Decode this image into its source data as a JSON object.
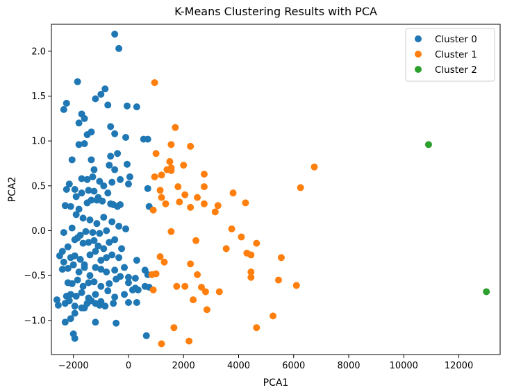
{
  "chart_data": {
    "type": "scatter",
    "title": "K-Means Clustering Results with PCA",
    "xlabel": "PCA1",
    "ylabel": "PCA2",
    "xlim": [
      -2800,
      13500
    ],
    "ylim": [
      -1.38,
      2.3
    ],
    "xticks": [
      -2000,
      0,
      2000,
      4000,
      6000,
      8000,
      10000,
      12000
    ],
    "xtick_labels": [
      "−2000",
      "0",
      "2000",
      "4000",
      "6000",
      "8000",
      "10000",
      "12000"
    ],
    "yticks": [
      -1.0,
      -0.5,
      0.0,
      0.5,
      1.0,
      1.5,
      2.0
    ],
    "ytick_labels": [
      "−1.0",
      "−0.5",
      "0.0",
      "0.5",
      "1.0",
      "1.5",
      "2.0"
    ],
    "grid": false,
    "legend_position": "top-right",
    "series": [
      {
        "name": "Cluster 0",
        "color": "#1f77b4",
        "points": [
          [
            -500,
            2.19
          ],
          [
            -350,
            2.03
          ],
          [
            -1850,
            1.66
          ],
          [
            -2250,
            1.42
          ],
          [
            -2350,
            1.35
          ],
          [
            -1700,
            1.3
          ],
          [
            -1200,
            1.47
          ],
          [
            -1000,
            1.52
          ],
          [
            -850,
            1.58
          ],
          [
            -750,
            1.4
          ],
          [
            -50,
            1.39
          ],
          [
            300,
            1.38
          ],
          [
            -1600,
            1.25
          ],
          [
            -1800,
            1.2
          ],
          [
            -650,
            1.16
          ],
          [
            -1500,
            1.07
          ],
          [
            -1350,
            1.1
          ],
          [
            -500,
            1.08
          ],
          [
            -100,
            1.04
          ],
          [
            550,
            1.02
          ],
          [
            700,
            1.02
          ],
          [
            -1800,
            0.96
          ],
          [
            -1600,
            0.97
          ],
          [
            -2050,
            0.79
          ],
          [
            -1350,
            0.79
          ],
          [
            -1250,
            0.68
          ],
          [
            -650,
            0.83
          ],
          [
            -400,
            0.86
          ],
          [
            -700,
            0.73
          ],
          [
            -500,
            0.68
          ],
          [
            -50,
            0.74
          ],
          [
            -2150,
            0.52
          ],
          [
            -1950,
            0.46
          ],
          [
            -1700,
            0.58
          ],
          [
            -1500,
            0.57
          ],
          [
            -1300,
            0.6
          ],
          [
            -1050,
            0.55
          ],
          [
            -900,
            0.5
          ],
          [
            -600,
            0.54
          ],
          [
            -300,
            0.57
          ],
          [
            50,
            0.6
          ],
          [
            -2250,
            0.46
          ],
          [
            -2300,
            0.28
          ],
          [
            -2100,
            0.27
          ],
          [
            -1900,
            0.38
          ],
          [
            -1700,
            0.42
          ],
          [
            -1450,
            0.45
          ],
          [
            -1250,
            0.44
          ],
          [
            -1100,
            0.37
          ],
          [
            -950,
            0.33
          ],
          [
            -750,
            0.42
          ],
          [
            -550,
            0.29
          ],
          [
            -300,
            0.29
          ],
          [
            0,
            0.52
          ],
          [
            -1800,
            0.24
          ],
          [
            -1500,
            0.31
          ],
          [
            -1350,
            0.34
          ],
          [
            -1150,
            0.34
          ],
          [
            -650,
            0.3
          ],
          [
            -400,
            0.27
          ],
          [
            700,
            0.47
          ],
          [
            750,
            0.27
          ],
          [
            -1900,
            0.18
          ],
          [
            -1650,
            0.14
          ],
          [
            -1400,
            0.12
          ],
          [
            -1150,
            0.08
          ],
          [
            -900,
            0.15
          ],
          [
            -600,
            0.1
          ],
          [
            -350,
            0.05
          ],
          [
            -100,
            0.02
          ],
          [
            -2350,
            -0.02
          ],
          [
            -2050,
            0.03
          ],
          [
            -1750,
            -0.05
          ],
          [
            -1550,
            -0.01
          ],
          [
            -1300,
            -0.02
          ],
          [
            -1050,
            -0.03
          ],
          [
            -800,
            0.0
          ],
          [
            -2400,
            -0.23
          ],
          [
            -2200,
            -0.18
          ],
          [
            -1950,
            -0.1
          ],
          [
            -1850,
            -0.08
          ],
          [
            -1650,
            -0.14
          ],
          [
            -1450,
            -0.13
          ],
          [
            -1250,
            -0.11
          ],
          [
            -1100,
            -0.17
          ],
          [
            -900,
            -0.2
          ],
          [
            -700,
            -0.13
          ],
          [
            -500,
            -0.1
          ],
          [
            -250,
            -0.2
          ],
          [
            -2500,
            -0.28
          ],
          [
            -2350,
            -0.35
          ],
          [
            -2100,
            -0.3
          ],
          [
            -1950,
            -0.28
          ],
          [
            -1750,
            -0.32
          ],
          [
            -1600,
            -0.38
          ],
          [
            -1400,
            -0.27
          ],
          [
            -1200,
            -0.23
          ],
          [
            -1000,
            -0.33
          ],
          [
            -800,
            -0.3
          ],
          [
            -600,
            -0.27
          ],
          [
            -350,
            -0.3
          ],
          [
            -150,
            -0.41
          ],
          [
            300,
            -0.33
          ],
          [
            600,
            -0.44
          ],
          [
            -2400,
            -0.43
          ],
          [
            -2200,
            -0.42
          ],
          [
            -2000,
            -0.38
          ],
          [
            -1800,
            -0.46
          ],
          [
            -1600,
            -0.41
          ],
          [
            -1400,
            -0.5
          ],
          [
            -1200,
            -0.41
          ],
          [
            -1000,
            -0.43
          ],
          [
            -800,
            -0.46
          ],
          [
            -500,
            -0.44
          ],
          [
            -300,
            -0.51
          ],
          [
            0,
            -0.52
          ],
          [
            250,
            -0.53
          ],
          [
            700,
            -0.49
          ],
          [
            -2200,
            -0.58
          ],
          [
            -2050,
            -0.59
          ],
          [
            -1850,
            -0.55
          ],
          [
            -1650,
            -0.62
          ],
          [
            -1450,
            -0.58
          ],
          [
            -1250,
            -0.57
          ],
          [
            -1000,
            -0.62
          ],
          [
            -700,
            -0.59
          ],
          [
            -450,
            -0.54
          ],
          [
            0,
            -0.58
          ],
          [
            250,
            -0.64
          ],
          [
            600,
            -0.62
          ],
          [
            750,
            -0.63
          ],
          [
            -2250,
            -0.73
          ],
          [
            -2100,
            -0.71
          ],
          [
            -1900,
            -0.73
          ],
          [
            -1700,
            -0.69
          ],
          [
            -1450,
            -0.75
          ],
          [
            -1200,
            -0.71
          ],
          [
            -1000,
            -0.79
          ],
          [
            -750,
            -0.67
          ],
          [
            -500,
            -0.74
          ],
          [
            -150,
            -0.71
          ],
          [
            150,
            -0.66
          ],
          [
            350,
            -0.66
          ],
          [
            -2600,
            -0.77
          ],
          [
            -2550,
            -0.83
          ],
          [
            -2300,
            -0.81
          ],
          [
            -2150,
            -0.78
          ],
          [
            -1950,
            -0.84
          ],
          [
            -1700,
            -0.86
          ],
          [
            -1500,
            -0.81
          ],
          [
            -1350,
            -0.78
          ],
          [
            -1200,
            -0.81
          ],
          [
            -1050,
            -0.83
          ],
          [
            -850,
            -0.84
          ],
          [
            -550,
            -0.81
          ],
          [
            0,
            -0.8
          ],
          [
            300,
            -0.8
          ],
          [
            -2300,
            -1.02
          ],
          [
            -2100,
            -0.98
          ],
          [
            -1950,
            -0.92
          ],
          [
            -1600,
            -0.86
          ],
          [
            -1200,
            -1.02
          ],
          [
            -450,
            -1.03
          ],
          [
            -2000,
            -1.15
          ],
          [
            -1950,
            -1.2
          ],
          [
            650,
            -1.17
          ]
        ]
      },
      {
        "name": "Cluster 1",
        "color": "#ff7f0e",
        "points": [
          [
            950,
            1.65
          ],
          [
            1700,
            1.15
          ],
          [
            2250,
            0.94
          ],
          [
            1550,
            0.96
          ],
          [
            1000,
            0.86
          ],
          [
            1500,
            0.77
          ],
          [
            1550,
            0.7
          ],
          [
            1400,
            0.68
          ],
          [
            1550,
            0.67
          ],
          [
            2000,
            0.73
          ],
          [
            6750,
            0.71
          ],
          [
            2750,
            0.63
          ],
          [
            950,
            0.6
          ],
          [
            1200,
            0.62
          ],
          [
            6250,
            0.48
          ],
          [
            1800,
            0.49
          ],
          [
            2750,
            0.49
          ],
          [
            1150,
            0.45
          ],
          [
            3800,
            0.42
          ],
          [
            1200,
            0.37
          ],
          [
            2050,
            0.4
          ],
          [
            2500,
            0.37
          ],
          [
            1350,
            0.3
          ],
          [
            1850,
            0.32
          ],
          [
            2250,
            0.26
          ],
          [
            2750,
            0.3
          ],
          [
            3150,
            0.21
          ],
          [
            3250,
            0.28
          ],
          [
            4250,
            0.31
          ],
          [
            900,
            0.23
          ],
          [
            1550,
            -0.01
          ],
          [
            3750,
            0.02
          ],
          [
            4100,
            -0.07
          ],
          [
            4650,
            -0.14
          ],
          [
            2450,
            -0.11
          ],
          [
            3550,
            -0.2
          ],
          [
            4450,
            -0.27
          ],
          [
            5550,
            -0.3
          ],
          [
            4300,
            -0.25
          ],
          [
            1150,
            -0.29
          ],
          [
            1300,
            -0.35
          ],
          [
            2250,
            -0.37
          ],
          [
            1000,
            -0.48
          ],
          [
            850,
            -0.49
          ],
          [
            2500,
            -0.49
          ],
          [
            4450,
            -0.46
          ],
          [
            4450,
            -0.52
          ],
          [
            5450,
            -0.55
          ],
          [
            6100,
            -0.61
          ],
          [
            1750,
            -0.62
          ],
          [
            2050,
            -0.62
          ],
          [
            2650,
            -0.63
          ],
          [
            2800,
            -0.68
          ],
          [
            3300,
            -0.68
          ],
          [
            900,
            -0.66
          ],
          [
            2350,
            -0.77
          ],
          [
            2850,
            -0.88
          ],
          [
            5250,
            -0.95
          ],
          [
            4650,
            -1.08
          ],
          [
            1650,
            -1.08
          ],
          [
            2200,
            -1.23
          ],
          [
            1200,
            -1.26
          ]
        ]
      },
      {
        "name": "Cluster 2",
        "color": "#2ca02c",
        "points": [
          [
            10900,
            0.96
          ],
          [
            13000,
            -0.68
          ]
        ]
      }
    ]
  }
}
